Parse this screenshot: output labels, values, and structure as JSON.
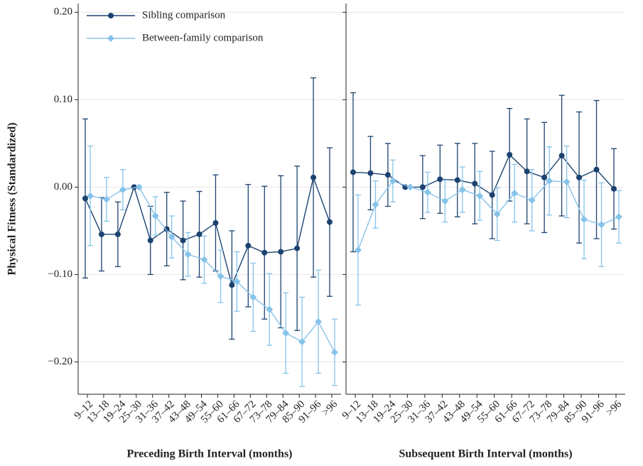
{
  "chart_data": [
    {
      "type": "line",
      "y_label": "Physical Fitness (Standardized)",
      "x_label": "Preceding Birth Interval (months)",
      "categories": [
        "9–12",
        "13–18",
        "19–24",
        "25–30",
        "31–36",
        "37–42",
        "43–48",
        "49–54",
        "55–60",
        "61–66",
        "67–72",
        "73–78",
        "79–84",
        "85–90",
        "91–96",
        ">96"
      ],
      "series": [
        {
          "name": "Sibling comparison",
          "color": "#1c4370",
          "marker": "circle",
          "values": [
            -0.013,
            -0.054,
            -0.054,
            0,
            -0.061,
            -0.048,
            -0.061,
            -0.054,
            -0.041,
            -0.112,
            -0.067,
            -0.075,
            -0.074,
            -0.07,
            0.011,
            -0.04
          ],
          "errors": [
            0.091,
            0.042,
            0.037,
            0,
            0.039,
            0.042,
            0.045,
            0.049,
            0.055,
            0.062,
            0.07,
            0.076,
            0.087,
            0.094,
            0.114,
            0.085
          ]
        },
        {
          "name": "Between-family comparison",
          "color": "#86c3ea",
          "marker": "diamond",
          "values": [
            -0.01,
            -0.014,
            -0.003,
            0,
            -0.033,
            -0.057,
            -0.077,
            -0.083,
            -0.102,
            -0.108,
            -0.126,
            -0.14,
            -0.167,
            -0.177,
            -0.154,
            -0.189
          ],
          "errors": [
            0.057,
            0.025,
            0.023,
            0,
            0.022,
            0.024,
            0.025,
            0.027,
            0.03,
            0.034,
            0.039,
            0.041,
            0.046,
            0.051,
            0.059,
            0.038
          ]
        }
      ],
      "ylim": [
        -0.237,
        0.21
      ],
      "yticks": [
        {
          "value": -0.2,
          "label": "−0.20"
        },
        {
          "value": -0.1,
          "label": "−0.10"
        },
        {
          "value": 0,
          "label": "0.00"
        },
        {
          "value": 0.1,
          "label": "0.10"
        },
        {
          "value": 0.2,
          "label": "0.20"
        }
      ],
      "grid": true,
      "legend": "upper left"
    },
    {
      "type": "line",
      "x_label": "Subsequent Birth Interval (months)",
      "categories": [
        "9–12",
        "13–18",
        "19–24",
        "25–30",
        "31–36",
        "37–42",
        "43–48",
        "49–54",
        "55–60",
        "61–66",
        "67–72",
        "73–78",
        "79–84",
        "85–90",
        "91–96",
        ">96"
      ],
      "series": [
        {
          "color": "#1c4370",
          "marker": "circle",
          "values": [
            0.017,
            0.016,
            0.014,
            0,
            0.0,
            0.009,
            0.008,
            0.004,
            -0.009,
            0.037,
            0.018,
            0.011,
            0.036,
            0.011,
            0.02,
            -0.002
          ],
          "errors": [
            0.091,
            0.042,
            0.036,
            0,
            0.036,
            0.039,
            0.042,
            0.046,
            0.05,
            0.053,
            0.06,
            0.063,
            0.069,
            0.075,
            0.079,
            0.046
          ]
        },
        {
          "color": "#86c3ea",
          "marker": "diamond",
          "values": [
            -0.072,
            -0.02,
            0.007,
            0,
            -0.006,
            -0.016,
            -0.003,
            -0.01,
            -0.031,
            -0.007,
            -0.015,
            0.007,
            0.006,
            -0.037,
            -0.043,
            -0.034
          ],
          "errors": [
            0.063,
            0.027,
            0.024,
            0,
            0.023,
            0.024,
            0.026,
            0.028,
            0.03,
            0.033,
            0.035,
            0.039,
            0.041,
            0.045,
            0.048,
            0.03
          ]
        }
      ],
      "ylim": [
        -0.237,
        0.21
      ],
      "yticks": [
        -0.2,
        -0.1,
        0,
        0.1,
        0.2
      ],
      "grid": true
    }
  ]
}
